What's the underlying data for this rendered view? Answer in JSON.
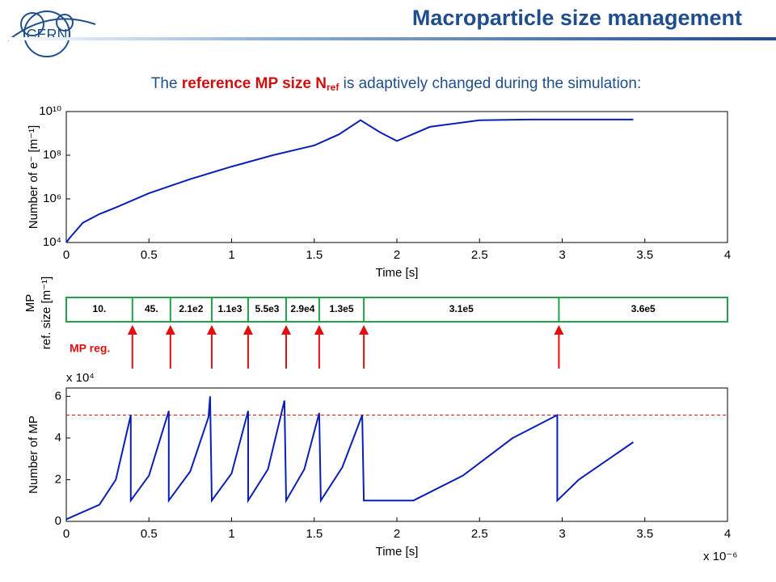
{
  "header": {
    "title": "Macroparticle size management",
    "logo_text": "CERN"
  },
  "subtitle": {
    "before": "The ",
    "highlight": "reference MP size N",
    "highlight_sub": "ref",
    "after": " is adaptively changed during the simulation:"
  },
  "chart_data": [
    {
      "type": "line",
      "xlabel": "Time [s]",
      "ylabel": "Number of e⁻ [m⁻¹]",
      "log_y": true,
      "color": "#0a1fb4",
      "x": [
        0,
        0.02,
        0.1,
        0.2,
        0.3,
        0.5,
        0.75,
        1,
        1.25,
        1.5,
        1.65,
        1.78,
        1.9,
        2.0,
        2.2,
        2.5,
        2.8,
        3.1,
        3.43
      ],
      "values": [
        10000,
        16000,
        80000,
        200000,
        400000,
        1800000,
        8000000,
        30000000,
        100000000,
        280000000,
        900000000,
        4000000000,
        1100000000,
        450000000,
        2000000000,
        4000000000,
        4300000000,
        4300000000,
        4300000000
      ],
      "xlim": [
        0,
        4
      ],
      "xticks": [
        0,
        0.5,
        1,
        1.5,
        2,
        2.5,
        3,
        3.5,
        4
      ],
      "ylim": [
        10000,
        10000000000
      ],
      "yticks": [
        {
          "value": 10000,
          "label": "10⁴"
        },
        {
          "value": 1000000,
          "label": "10⁶"
        },
        {
          "value": 100000000,
          "label": "10⁸"
        },
        {
          "value": 10000000000,
          "label": "10¹⁰"
        }
      ]
    },
    {
      "type": "segments",
      "ylabel": "MP",
      "ylabel2": "ref. size [m⁻¹]",
      "color": "#22a04b",
      "marker_color": "#e01010",
      "marker_label": "MP reg.",
      "xlim": [
        0,
        4
      ],
      "boundaries": [
        0,
        0.4,
        0.63,
        0.88,
        1.1,
        1.33,
        1.53,
        1.8,
        2.98,
        4
      ],
      "labels": [
        "10.",
        "45.",
        "2.1e2",
        "1.1e3",
        "5.5e3",
        "2.9e4",
        "1.3e5",
        "3.1e5",
        "3.6e5"
      ]
    },
    {
      "type": "line",
      "xlabel": "Time [s]",
      "ylabel": "Number of MP",
      "x_multiplier": "x 10⁻⁶",
      "y_multiplier": "x 10⁴",
      "color": "#0a1fb4",
      "x": [
        0,
        0.2,
        0.3,
        0.39,
        0.39,
        0.5,
        0.62,
        0.62,
        0.75,
        0.86,
        0.87,
        0.88,
        1.0,
        1.1,
        1.1,
        1.22,
        1.32,
        1.33,
        1.44,
        1.53,
        1.54,
        1.67,
        1.79,
        1.8,
        2.1,
        2.4,
        2.7,
        2.97,
        2.97,
        3.1,
        3.43
      ],
      "values": [
        0.1,
        0.8,
        2.0,
        5.1,
        1.0,
        2.2,
        5.3,
        1.0,
        2.4,
        5.0,
        6.0,
        1.0,
        2.3,
        5.3,
        1.0,
        2.5,
        5.8,
        1.0,
        2.5,
        5.2,
        1.0,
        2.6,
        5.1,
        1.0,
        1.0,
        2.2,
        4.0,
        5.1,
        1.0,
        2.0,
        3.8
      ],
      "xlim": [
        0,
        4
      ],
      "xticks": [
        0,
        0.5,
        1,
        1.5,
        2,
        2.5,
        3,
        3.5,
        4
      ],
      "ylim": [
        0,
        6.4
      ],
      "yticks": [
        0,
        2,
        4,
        6
      ],
      "hline": {
        "value": 5.1,
        "color": "#e01010"
      }
    }
  ]
}
